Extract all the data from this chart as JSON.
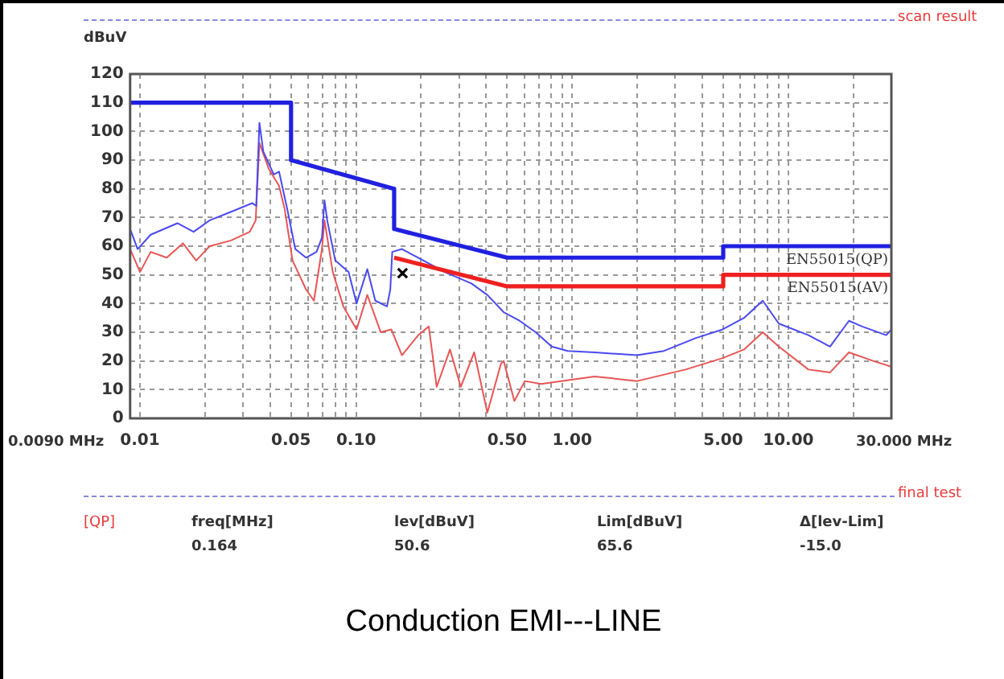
{
  "chart_data": {
    "type": "line",
    "title": "Conduction EMI---LINE",
    "ylabel": "dBuV",
    "annotations": [
      "scan result",
      "final test",
      "[QP]",
      "freq[MHz]",
      "lev[dBuV]",
      "Lim[dBuV]",
      "Δ[lev-Lim]",
      "0.164",
      "50.6",
      "65.6",
      "-15.0",
      "0.0090 MHz",
      "30.000 MHz"
    ],
    "log": "x",
    "grid": true,
    "xlim": [
      0.009,
      30
    ],
    "ylim": [
      0,
      120
    ],
    "xticks": [
      0.01,
      {
        "value": 0.02,
        "label": null
      },
      {
        "value": 0.03,
        "label": null
      },
      {
        "value": 0.04,
        "label": null
      },
      0.05,
      {
        "value": 0.06,
        "label": null
      },
      {
        "value": 0.07,
        "label": null
      },
      {
        "value": 0.08,
        "label": null
      },
      {
        "value": 0.09,
        "label": null
      },
      {
        "value": 0.1,
        "label": "0.10"
      },
      {
        "value": 0.2,
        "label": null
      },
      {
        "value": 0.3,
        "label": null
      },
      {
        "value": 0.4,
        "label": null
      },
      {
        "value": 0.5,
        "label": "0.50"
      },
      {
        "value": 0.6,
        "label": null
      },
      {
        "value": 0.7,
        "label": null
      },
      {
        "value": 0.8,
        "label": null
      },
      {
        "value": 0.9,
        "label": null
      },
      {
        "value": 1,
        "label": "1.00"
      },
      {
        "value": 2,
        "label": null
      },
      {
        "value": 3,
        "label": null
      },
      {
        "value": 4,
        "label": null
      },
      {
        "value": 5,
        "label": "5.00"
      },
      {
        "value": 6,
        "label": null
      },
      {
        "value": 7,
        "label": null
      },
      {
        "value": 8,
        "label": null
      },
      {
        "value": 9,
        "label": null
      },
      {
        "value": 10,
        "label": "10.00"
      },
      {
        "value": 20,
        "label": null
      }
    ],
    "yticks": [
      0,
      10,
      20,
      30,
      40,
      50,
      60,
      70,
      80,
      90,
      100,
      110,
      120
    ],
    "series": [
      {
        "color": "#4a4af0",
        "x": [
          0.009,
          0.00975,
          0.0112,
          0.0149,
          0.0177,
          0.021,
          0.0264,
          0.0331,
          0.0345,
          0.0357,
          0.0372,
          0.0416,
          0.044,
          0.048,
          0.0523,
          0.0586,
          0.0656,
          0.0695,
          0.0714,
          0.0735,
          0.0801,
          0.0923,
          0.1005,
          0.1127,
          0.1227,
          0.139,
          0.144,
          0.147,
          0.163,
          0.205,
          0.257,
          0.342,
          0.405,
          0.482,
          0.571,
          0.678,
          0.804,
          0.953,
          1.27,
          2.0,
          2.66,
          3.74,
          4.97,
          6.24,
          7.62,
          9.04,
          12.4,
          15.6,
          19.1,
          22.0,
          28.4,
          30
        ],
        "values": [
          66,
          59,
          64,
          68,
          65,
          69,
          72,
          75,
          74,
          103,
          93,
          85,
          86,
          73,
          59,
          56,
          58,
          63,
          76,
          69,
          55,
          51,
          40,
          52,
          41,
          39,
          45,
          58,
          59,
          55,
          51,
          47,
          43,
          37,
          34,
          30,
          25,
          23.5,
          23,
          22,
          23.5,
          28,
          31,
          35,
          41,
          33,
          29,
          25,
          34,
          32,
          29,
          31
        ]
      },
      {
        "color": "#e85555",
        "x": [
          0.009,
          0.01,
          0.0112,
          0.0133,
          0.0158,
          0.0182,
          0.021,
          0.0264,
          0.0322,
          0.0343,
          0.0357,
          0.0394,
          0.044,
          0.0467,
          0.0508,
          0.0586,
          0.0638,
          0.0695,
          0.0714,
          0.078,
          0.0873,
          0.1005,
          0.1127,
          0.13,
          0.1455,
          0.163,
          0.194,
          0.217,
          0.236,
          0.272,
          0.305,
          0.352,
          0.405,
          0.468,
          0.482,
          0.54,
          0.604,
          0.718,
          1.27,
          2.0,
          3.34,
          4.97,
          6.24,
          7.62,
          9.04,
          12.4,
          15.6,
          19.1,
          24.7,
          30
        ],
        "values": [
          59,
          51,
          58,
          56,
          61,
          55,
          60,
          62,
          65,
          69,
          96,
          87,
          81,
          73,
          55,
          45,
          41,
          59,
          69,
          51,
          39,
          31,
          43,
          30,
          31,
          22,
          29,
          32,
          11,
          24,
          11,
          23,
          2,
          19,
          20,
          6,
          13,
          12,
          14.6,
          13,
          17,
          21,
          24,
          30,
          25,
          17,
          16,
          23,
          20,
          18
        ]
      },
      {
        "name": "EN55015(QP)",
        "color": "#2020e0",
        "x": [
          0.009,
          0.05,
          0.05,
          0.15,
          0.15,
          0.5,
          5,
          5,
          30
        ],
        "values": [
          110,
          110,
          90,
          80,
          66,
          56,
          56,
          60,
          60
        ]
      },
      {
        "name": "EN55015(AV)",
        "color": "#ee2020",
        "x": [
          0.15,
          0.5,
          5,
          5,
          30
        ],
        "values": [
          56,
          46,
          46,
          50,
          50
        ]
      },
      {
        "type": "scatter",
        "marker": "cross",
        "color": "#000000",
        "x": [
          0.164
        ],
        "values": [
          50.6
        ]
      }
    ]
  }
}
